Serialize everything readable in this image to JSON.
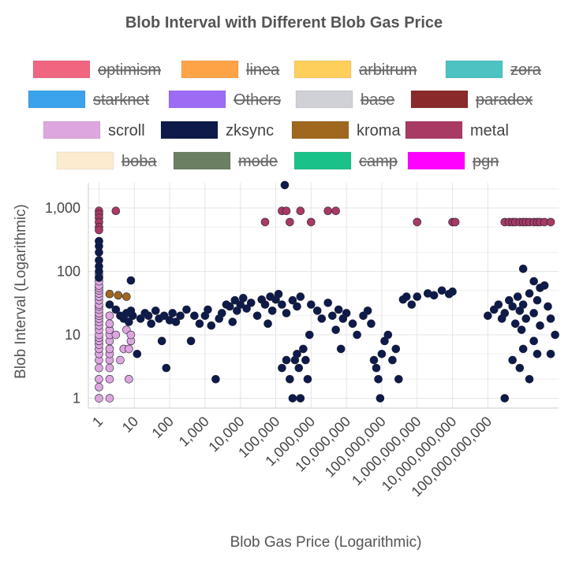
{
  "chart_data": {
    "type": "scatter",
    "title": "Blob Interval with Different Blob Gas Price",
    "xlabel": "Blob Gas Price (Logarithmic)",
    "ylabel": "Blob Interval (Logarithmic)",
    "x_scale": "log",
    "y_scale": "log",
    "xlim": [
      0.5,
      10000000000000
    ],
    "ylim": [
      0.7,
      2500
    ],
    "x_ticks": [
      1,
      10,
      100,
      1000,
      10000,
      100000,
      1000000,
      10000000,
      100000000,
      1000000000,
      10000000000,
      100000000000
    ],
    "x_tick_labels": [
      "1",
      "10",
      "100",
      "1,000",
      "10,000",
      "100,000",
      "1,000,000",
      "10,000,000",
      "100,000,000",
      "1,000,000,000",
      "10,000,000,000",
      "100,000,000,000"
    ],
    "y_ticks": [
      1,
      10,
      100,
      1000
    ],
    "y_tick_labels": [
      "1",
      "10",
      "100",
      "1,000"
    ],
    "grid": true,
    "legend_position": "top",
    "legend": [
      {
        "name": "optimism",
        "color": "#f06580",
        "hidden": true
      },
      {
        "name": "linea",
        "color": "#ffa347",
        "hidden": true
      },
      {
        "name": "arbitrum",
        "color": "#ffcf5c",
        "hidden": true
      },
      {
        "name": "zora",
        "color": "#4cc2c2",
        "hidden": true
      },
      {
        "name": "starknet",
        "color": "#3ba3ec",
        "hidden": true
      },
      {
        "name": "Others",
        "color": "#9d6cf5",
        "hidden": true
      },
      {
        "name": "base",
        "color": "#cfd1d6",
        "hidden": true
      },
      {
        "name": "paradex",
        "color": "#8a2a2a",
        "hidden": true
      },
      {
        "name": "scroll",
        "color": "#dda6de",
        "hidden": false
      },
      {
        "name": "zksync",
        "color": "#0d1a4a",
        "hidden": false
      },
      {
        "name": "kroma",
        "color": "#a0671f",
        "hidden": false
      },
      {
        "name": "metal",
        "color": "#a83a64",
        "hidden": false
      },
      {
        "name": "boba",
        "color": "#fdebd0",
        "hidden": true
      },
      {
        "name": "mode",
        "color": "#6b7f63",
        "hidden": true
      },
      {
        "name": "camp",
        "color": "#1ac28a",
        "hidden": true
      },
      {
        "name": "pgn",
        "color": "#ff00ff",
        "hidden": true
      }
    ],
    "series": [
      {
        "name": "scroll",
        "color": "#dda6de",
        "points": [
          [
            1,
            1
          ],
          [
            1,
            1.5
          ],
          [
            1,
            2
          ],
          [
            1,
            3
          ],
          [
            1,
            4
          ],
          [
            1,
            5
          ],
          [
            1,
            6
          ],
          [
            1,
            7
          ],
          [
            1,
            8
          ],
          [
            1,
            9
          ],
          [
            1,
            10
          ],
          [
            1,
            12
          ],
          [
            1,
            14
          ],
          [
            1,
            16
          ],
          [
            1,
            18
          ],
          [
            1,
            20
          ],
          [
            1,
            22
          ],
          [
            1,
            25
          ],
          [
            1,
            28
          ],
          [
            1,
            30
          ],
          [
            1,
            35
          ],
          [
            1,
            40
          ],
          [
            1,
            45
          ],
          [
            1,
            50
          ],
          [
            1,
            55
          ],
          [
            1,
            60
          ],
          [
            1,
            70
          ],
          [
            1,
            80
          ],
          [
            1,
            90
          ],
          [
            2,
            1
          ],
          [
            2,
            2
          ],
          [
            2,
            3
          ],
          [
            2,
            4
          ],
          [
            2,
            5
          ],
          [
            2,
            6
          ],
          [
            2,
            8
          ],
          [
            2,
            10
          ],
          [
            2,
            12
          ],
          [
            2,
            15
          ],
          [
            2,
            20
          ],
          [
            3,
            10
          ],
          [
            4,
            4
          ],
          [
            5,
            6
          ],
          [
            6,
            12
          ],
          [
            7,
            2
          ],
          [
            7,
            6
          ],
          [
            8,
            8
          ],
          [
            8,
            10
          ]
        ]
      },
      {
        "name": "kroma",
        "color": "#a0671f",
        "points": [
          [
            2,
            44
          ],
          [
            3.5,
            42
          ],
          [
            6,
            40
          ]
        ]
      },
      {
        "name": "metal",
        "color": "#a83a64",
        "points": [
          [
            1,
            900
          ],
          [
            1,
            800
          ],
          [
            1,
            700
          ],
          [
            1,
            600
          ],
          [
            1,
            500
          ],
          [
            1,
            450
          ],
          [
            1,
            300
          ],
          [
            3,
            900
          ],
          [
            50000,
            600
          ],
          [
            150000,
            900
          ],
          [
            200000,
            900
          ],
          [
            250000,
            600
          ],
          [
            500000,
            900
          ],
          [
            1000000,
            600
          ],
          [
            3000000,
            900
          ],
          [
            5000000,
            900
          ],
          [
            1000000000,
            600
          ],
          [
            10000000000,
            600
          ],
          [
            12000000000,
            600
          ],
          [
            300000000000,
            600
          ],
          [
            400000000000,
            600
          ],
          [
            500000000000,
            600
          ],
          [
            600000000000,
            600
          ],
          [
            800000000000,
            600
          ],
          [
            1000000000000,
            600
          ],
          [
            1200000000000,
            600
          ],
          [
            1500000000000,
            600
          ],
          [
            2000000000000,
            600
          ],
          [
            2500000000000,
            600
          ],
          [
            3000000000000,
            600
          ],
          [
            4000000000000,
            600
          ],
          [
            6000000000000,
            600
          ]
        ]
      },
      {
        "name": "zksync",
        "color": "#0d1a4a",
        "points": [
          [
            1,
            300
          ],
          [
            1,
            250
          ],
          [
            1,
            200
          ],
          [
            1,
            150
          ],
          [
            1,
            120
          ],
          [
            1,
            100
          ],
          [
            1,
            80
          ],
          [
            8,
            72
          ],
          [
            2,
            30
          ],
          [
            3,
            25
          ],
          [
            4,
            20
          ],
          [
            5,
            18
          ],
          [
            6,
            22
          ],
          [
            7,
            16
          ],
          [
            8,
            24
          ],
          [
            9,
            20
          ],
          [
            12,
            5
          ],
          [
            15,
            18
          ],
          [
            20,
            22
          ],
          [
            25,
            20
          ],
          [
            30,
            15
          ],
          [
            40,
            24
          ],
          [
            50,
            18
          ],
          [
            60,
            8
          ],
          [
            70,
            20
          ],
          [
            80,
            3
          ],
          [
            100,
            17
          ],
          [
            120,
            22
          ],
          [
            150,
            16
          ],
          [
            200,
            20
          ],
          [
            300,
            25
          ],
          [
            400,
            8
          ],
          [
            500,
            20
          ],
          [
            700,
            15
          ],
          [
            1000,
            20
          ],
          [
            1200,
            25
          ],
          [
            1500,
            14
          ],
          [
            2000,
            2
          ],
          [
            2500,
            18
          ],
          [
            3000,
            22
          ],
          [
            4000,
            30
          ],
          [
            5000,
            28
          ],
          [
            6000,
            16
          ],
          [
            7000,
            35
          ],
          [
            8000,
            24
          ],
          [
            10000,
            30
          ],
          [
            12000,
            38
          ],
          [
            15000,
            26
          ],
          [
            20000,
            32
          ],
          [
            30000,
            20
          ],
          [
            40000,
            36
          ],
          [
            50000,
            30
          ],
          [
            60000,
            15
          ],
          [
            70000,
            40
          ],
          [
            80000,
            24
          ],
          [
            100000,
            36
          ],
          [
            120000,
            44
          ],
          [
            150000,
            30
          ],
          [
            200000,
            22
          ],
          [
            300000,
            35
          ],
          [
            400000,
            28
          ],
          [
            500000,
            40
          ],
          [
            150000,
            3
          ],
          [
            200000,
            4
          ],
          [
            250000,
            2
          ],
          [
            300000,
            1
          ],
          [
            350000,
            4
          ],
          [
            400000,
            5
          ],
          [
            450000,
            3
          ],
          [
            500000,
            1
          ],
          [
            600000,
            6
          ],
          [
            700000,
            4
          ],
          [
            800000,
            2
          ],
          [
            900000,
            10
          ],
          [
            180000,
            2300
          ],
          [
            1000000,
            30
          ],
          [
            1500000,
            24
          ],
          [
            2000000,
            18
          ],
          [
            3000000,
            32
          ],
          [
            4000000,
            20
          ],
          [
            5000000,
            12
          ],
          [
            6000000,
            25
          ],
          [
            7000000,
            6
          ],
          [
            8000000,
            18
          ],
          [
            10000000,
            22
          ],
          [
            15000000,
            15
          ],
          [
            20000000,
            10
          ],
          [
            30000000,
            20
          ],
          [
            40000000,
            24
          ],
          [
            50000000,
            15
          ],
          [
            60000000,
            4
          ],
          [
            70000000,
            3
          ],
          [
            80000000,
            2
          ],
          [
            90000000,
            1
          ],
          [
            100000000,
            5
          ],
          [
            120000000,
            8
          ],
          [
            150000000,
            10
          ],
          [
            200000000,
            4
          ],
          [
            250000000,
            6
          ],
          [
            300000000,
            2
          ],
          [
            400000000,
            36
          ],
          [
            500000000,
            40
          ],
          [
            700000000,
            30
          ],
          [
            1000000000,
            40
          ],
          [
            2000000000,
            45
          ],
          [
            3000000000,
            42
          ],
          [
            5000000000,
            50
          ],
          [
            8000000000,
            44
          ],
          [
            10000000000,
            48
          ],
          [
            100000000000,
            20
          ],
          [
            150000000000,
            25
          ],
          [
            200000000000,
            30
          ],
          [
            250000000000,
            18
          ],
          [
            300000000000,
            22
          ],
          [
            400000000000,
            35
          ],
          [
            500000000000,
            28
          ],
          [
            600000000000,
            15
          ],
          [
            700000000000,
            40
          ],
          [
            800000000000,
            24
          ],
          [
            900000000000,
            12
          ],
          [
            1000000000000,
            30
          ],
          [
            1200000000000,
            18
          ],
          [
            1500000000000,
            45
          ],
          [
            2000000000000,
            22
          ],
          [
            2500000000000,
            35
          ],
          [
            3000000000000,
            14
          ],
          [
            4000000000000,
            60
          ],
          [
            5000000000000,
            28
          ],
          [
            6000000000000,
            18
          ],
          [
            8000000000000,
            10
          ],
          [
            1000000000000,
            110
          ],
          [
            2000000000000,
            70
          ],
          [
            3000000000000,
            55
          ],
          [
            500000000000,
            4
          ],
          [
            800000000000,
            3
          ],
          [
            1000000000000,
            6
          ],
          [
            1500000000000,
            2
          ],
          [
            2000000000000,
            8
          ],
          [
            2500000000000,
            5
          ],
          [
            300000000000,
            1
          ],
          [
            6000000000000,
            5
          ]
        ]
      }
    ]
  }
}
